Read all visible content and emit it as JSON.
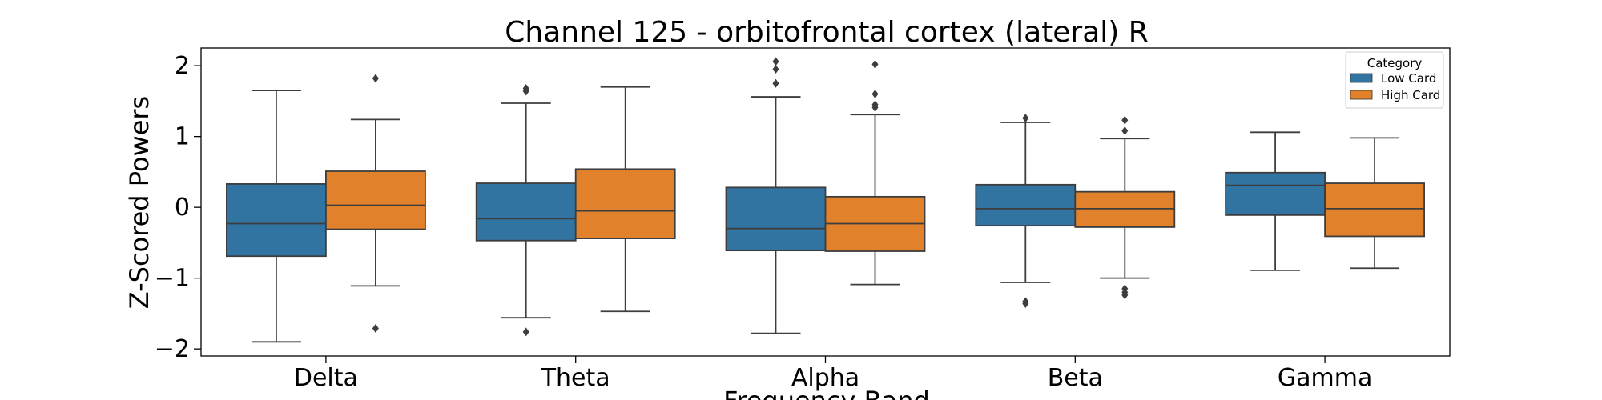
{
  "chart_data": {
    "type": "box",
    "title": "Channel 125 - orbitofrontal cortex (lateral) R",
    "xlabel": "Frequency Band",
    "ylabel": "Z-Scored Powers",
    "ylim": [
      -2.1,
      2.25
    ],
    "yticks": [
      -2,
      -1,
      0,
      1,
      2
    ],
    "ytick_labels": [
      "−2",
      "−1",
      "0",
      "1",
      "2"
    ],
    "categories": [
      "Delta",
      "Theta",
      "Alpha",
      "Beta",
      "Gamma"
    ],
    "grid": false,
    "legend": {
      "title": "Category",
      "placement": "top-right"
    },
    "series": [
      {
        "name": "Low Card",
        "color": "#3274a1",
        "boxes": [
          {
            "whisker_low": -1.9,
            "q1": -0.69,
            "median": -0.23,
            "q3": 0.33,
            "whisker_high": 1.65,
            "outliers": []
          },
          {
            "whisker_low": -1.56,
            "q1": -0.47,
            "median": -0.16,
            "q3": 0.34,
            "whisker_high": 1.47,
            "outliers": [
              1.64,
              1.68,
              -1.76
            ]
          },
          {
            "whisker_low": -1.78,
            "q1": -0.61,
            "median": -0.3,
            "q3": 0.28,
            "whisker_high": 1.56,
            "outliers": [
              2.06,
              1.95,
              1.75
            ]
          },
          {
            "whisker_low": -1.06,
            "q1": -0.26,
            "median": -0.02,
            "q3": 0.32,
            "whisker_high": 1.2,
            "outliers": [
              1.26,
              -1.33,
              -1.36
            ]
          },
          {
            "whisker_low": -0.89,
            "q1": -0.11,
            "median": 0.31,
            "q3": 0.49,
            "whisker_high": 1.06,
            "outliers": []
          }
        ]
      },
      {
        "name": "High Card",
        "color": "#e1812c",
        "boxes": [
          {
            "whisker_low": -1.11,
            "q1": -0.31,
            "median": 0.03,
            "q3": 0.51,
            "whisker_high": 1.24,
            "outliers": [
              1.82,
              -1.71
            ]
          },
          {
            "whisker_low": -1.47,
            "q1": -0.44,
            "median": -0.05,
            "q3": 0.54,
            "whisker_high": 1.7,
            "outliers": []
          },
          {
            "whisker_low": -1.09,
            "q1": -0.62,
            "median": -0.23,
            "q3": 0.15,
            "whisker_high": 1.31,
            "outliers": [
              2.02,
              1.6,
              1.45,
              1.41
            ]
          },
          {
            "whisker_low": -1.0,
            "q1": -0.28,
            "median": -0.02,
            "q3": 0.22,
            "whisker_high": 0.97,
            "outliers": [
              1.23,
              1.08,
              -1.15,
              -1.2,
              -1.24
            ]
          },
          {
            "whisker_low": -0.86,
            "q1": -0.41,
            "median": -0.02,
            "q3": 0.34,
            "whisker_high": 0.98,
            "outliers": []
          }
        ]
      }
    ]
  }
}
